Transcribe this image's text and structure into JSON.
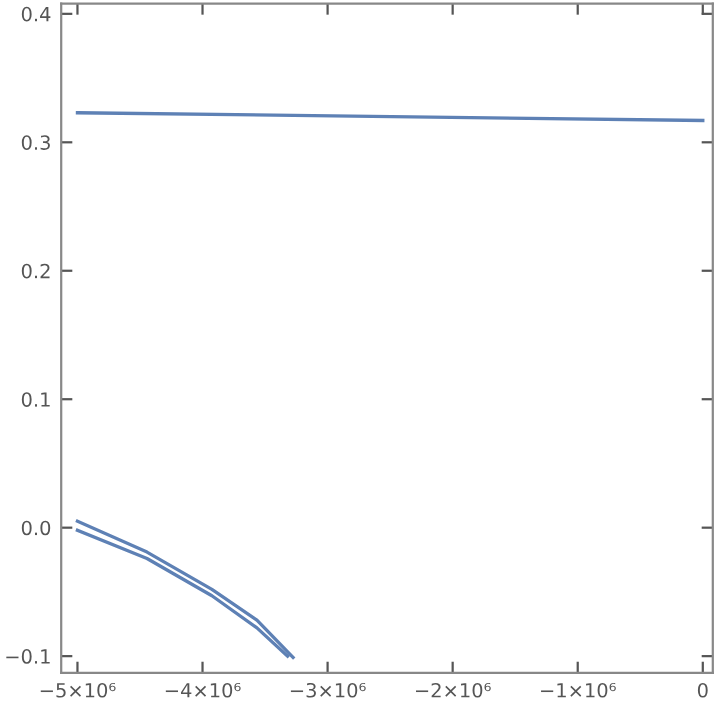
{
  "chart_data": {
    "type": "line",
    "series": [
      {
        "color": "#5e81b5",
        "x": [
          -5000000,
          0
        ],
        "values": [
          0.323,
          0.317
        ]
      },
      {
        "color": "#5e81b5",
        "x": [
          -5000000,
          -4444000,
          -3925000,
          -3565000,
          -3276000
        ],
        "values": [
          0.005,
          -0.019,
          -0.048,
          -0.072,
          -0.101
        ]
      },
      {
        "color": "#5e81b5",
        "x": [
          -5000000,
          -4444000,
          -3925000,
          -3565000,
          -3320000
        ],
        "values": [
          -0.002,
          -0.024,
          -0.053,
          -0.078,
          -0.1
        ]
      }
    ],
    "xlim": [
      -5130000,
      80000
    ],
    "ylim": [
      -0.113,
      0.408
    ],
    "xticks": [
      {
        "value": -5000000,
        "label": "−5×10⁶"
      },
      {
        "value": -4000000,
        "label": "−4×10⁶"
      },
      {
        "value": -3000000,
        "label": "−3×10⁶"
      },
      {
        "value": -2000000,
        "label": "−2×10⁶"
      },
      {
        "value": -1000000,
        "label": "−1×10⁶"
      },
      0
    ],
    "yticks": [
      {
        "value": -0.1,
        "label": "−0.1"
      },
      {
        "value": 0,
        "label": "0.0"
      },
      0.1,
      0.2,
      0.3,
      0.4
    ],
    "grid": false,
    "marker": "none",
    "line_style": "solid"
  }
}
